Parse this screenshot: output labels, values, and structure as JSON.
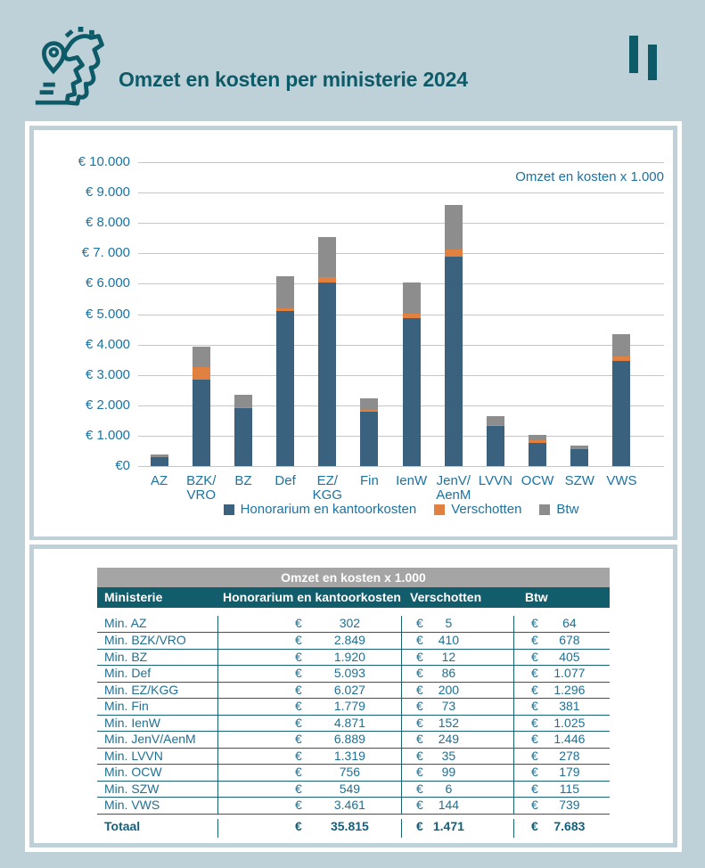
{
  "header": {
    "title": "Omzet en kosten per ministerie 2024",
    "logo": "netherlands-map-pin-logo"
  },
  "chart": {
    "annotation": "Omzet en kosten x 1.000",
    "y_ticks": [
      "€ 10.000",
      "€ 9.000",
      "€ 8.000",
      "€ 7. 000",
      "€ 6.000",
      "€ 5.000",
      "€ 4.000",
      "€ 3.000",
      "€ 2.000",
      "€ 1.000",
      "€0"
    ]
  },
  "chart_data": {
    "type": "bar",
    "stacked": true,
    "title": "Omzet en kosten per ministerie 2024",
    "unit_note": "Omzet en kosten x 1.000",
    "categories": [
      "AZ",
      "BZK/VRO",
      "BZ",
      "Def",
      "EZ/KGG",
      "Fin",
      "IenW",
      "JenV/AenM",
      "LVVN",
      "OCW",
      "SZW",
      "VWS"
    ],
    "x_labels_lines": [
      [
        "AZ"
      ],
      [
        "BZK/",
        "VRO"
      ],
      [
        "BZ"
      ],
      [
        "Def"
      ],
      [
        "EZ/",
        "KGG"
      ],
      [
        "Fin"
      ],
      [
        "IenW"
      ],
      [
        "JenV/",
        "AenM"
      ],
      [
        "LVVN"
      ],
      [
        "OCW"
      ],
      [
        "SZW"
      ],
      [
        "VWS"
      ]
    ],
    "series": [
      {
        "name": "Honorarium en kantoorkosten",
        "color": "#3a627f",
        "values": [
          302,
          2849,
          1920,
          5093,
          6027,
          1779,
          4871,
          6889,
          1319,
          756,
          549,
          3461
        ]
      },
      {
        "name": "Verschotten",
        "color": "#e08142",
        "values": [
          5,
          410,
          12,
          86,
          200,
          73,
          152,
          249,
          35,
          99,
          6,
          144
        ]
      },
      {
        "name": "Btw",
        "color": "#8d8d8d",
        "values": [
          64,
          678,
          405,
          1077,
          1296,
          381,
          1025,
          1446,
          278,
          179,
          115,
          739
        ]
      }
    ],
    "xlabel": "",
    "ylabel": "",
    "ylim": [
      0,
      10000
    ],
    "ytick_step": 1000,
    "grid": true,
    "legend_position": "bottom"
  },
  "table": {
    "caption": "Omzet en kosten x 1.000",
    "columns": [
      "Ministerie",
      "Honorarium en kantoorkosten",
      "Verschotten",
      "Btw"
    ],
    "currency": "€",
    "rows": [
      {
        "ministerie": "Min. AZ",
        "honorarium": "302",
        "verschotten": "5",
        "btw": "64"
      },
      {
        "ministerie": "Min. BZK/VRO",
        "honorarium": "2.849",
        "verschotten": "410",
        "btw": "678"
      },
      {
        "ministerie": "Min. BZ",
        "honorarium": "1.920",
        "verschotten": "12",
        "btw": "405"
      },
      {
        "ministerie": "Min. Def",
        "honorarium": "5.093",
        "verschotten": "86",
        "btw": "1.077"
      },
      {
        "ministerie": "Min. EZ/KGG",
        "honorarium": "6.027",
        "verschotten": "200",
        "btw": "1.296"
      },
      {
        "ministerie": "Min. Fin",
        "honorarium": "1.779",
        "verschotten": "73",
        "btw": "381"
      },
      {
        "ministerie": "Min. IenW",
        "honorarium": "4.871",
        "verschotten": "152",
        "btw": "1.025"
      },
      {
        "ministerie": "Min. JenV/AenM",
        "honorarium": "6.889",
        "verschotten": "249",
        "btw": "1.446"
      },
      {
        "ministerie": "Min. LVVN",
        "honorarium": "1.319",
        "verschotten": "35",
        "btw": "278"
      },
      {
        "ministerie": "Min. OCW",
        "honorarium": "756",
        "verschotten": "99",
        "btw": "179"
      },
      {
        "ministerie": "Min. SZW",
        "honorarium": "549",
        "verschotten": "6",
        "btw": "115"
      },
      {
        "ministerie": "Min. VWS",
        "honorarium": "3.461",
        "verschotten": "144",
        "btw": "739"
      }
    ],
    "total": {
      "ministerie": "Totaal",
      "honorarium": "35.815",
      "verschotten": "1.471",
      "btw": "7.683"
    }
  }
}
